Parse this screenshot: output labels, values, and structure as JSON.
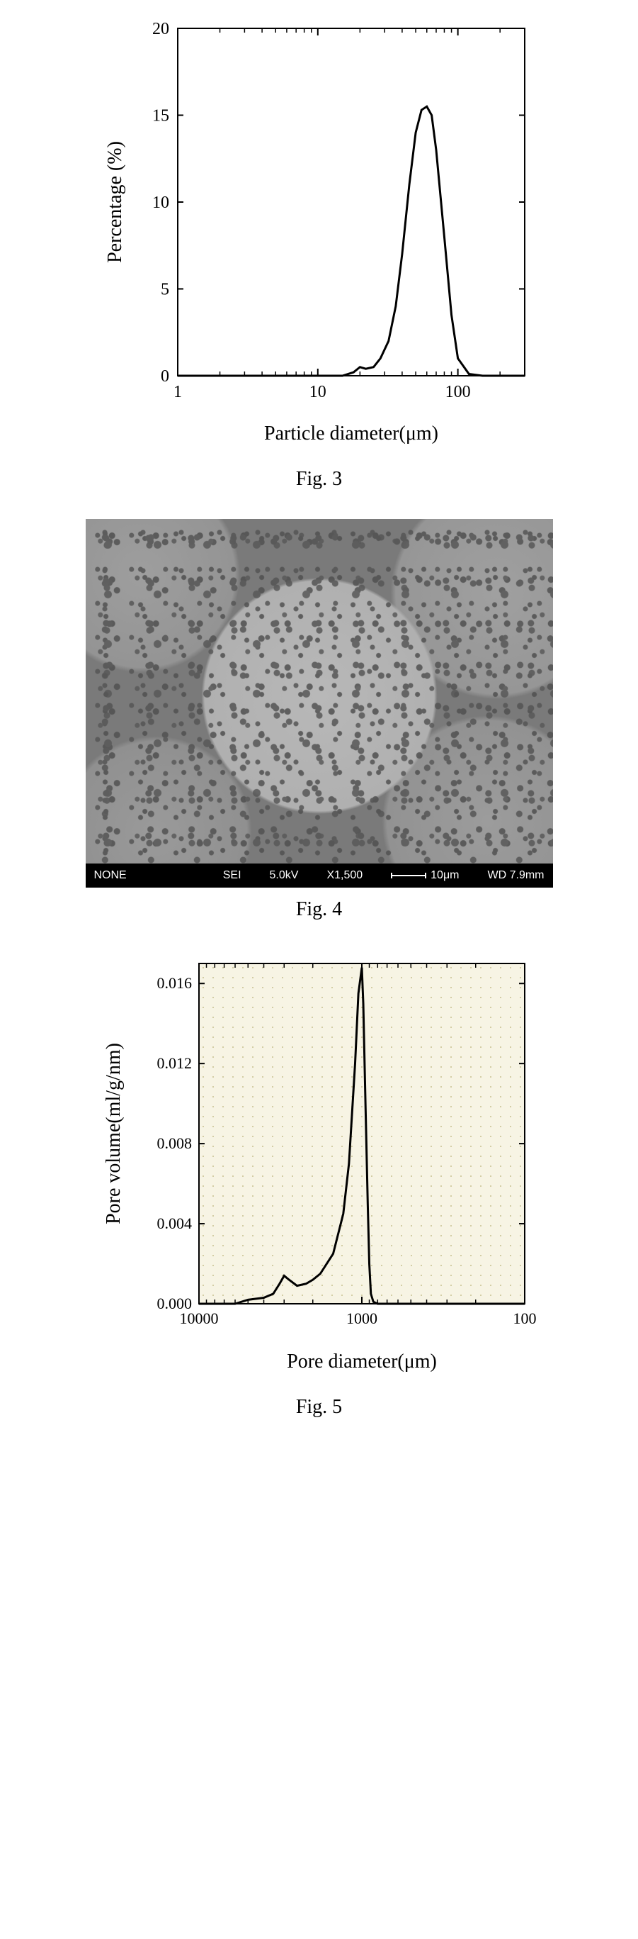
{
  "fig3": {
    "caption": "Fig. 3",
    "type": "line",
    "xlabel": "Particle diameter(μm)",
    "ylabel": "Percentage (%)",
    "xscale": "log",
    "xlim": [
      1,
      300
    ],
    "ylim": [
      0,
      20
    ],
    "xticks_major": [
      1,
      10,
      100
    ],
    "xtick_labels": [
      "1",
      "10",
      "100"
    ],
    "yticks": [
      0,
      5,
      10,
      15,
      20
    ],
    "ytick_labels": [
      "0",
      "5",
      "10",
      "15",
      "20"
    ],
    "line_color": "#000000",
    "line_width": 3,
    "background_color": "#ffffff",
    "axis_color": "#000000",
    "label_fontsize": 28,
    "tick_fontsize": 24,
    "tick_inward": true,
    "data": {
      "x": [
        1,
        5,
        10,
        15,
        18,
        20,
        22,
        25,
        28,
        32,
        36,
        40,
        45,
        50,
        55,
        60,
        65,
        70,
        80,
        90,
        100,
        120,
        150,
        200,
        300
      ],
      "y": [
        0,
        0,
        0,
        0,
        0.2,
        0.5,
        0.4,
        0.5,
        1.0,
        2.0,
        4.0,
        7.0,
        11.0,
        14.0,
        15.3,
        15.5,
        15.0,
        13.0,
        8.0,
        3.5,
        1.0,
        0.1,
        0,
        0,
        0
      ]
    }
  },
  "fig4": {
    "caption": "Fig. 4",
    "type": "sem-micrograph",
    "bar": {
      "label_left": "NONE",
      "detector": "SEI",
      "voltage": "5.0kV",
      "magnification": "X1,500",
      "scale_text": "10μm",
      "wd": "WD 7.9mm"
    }
  },
  "fig5": {
    "caption": "Fig. 5",
    "type": "line",
    "xlabel": "Pore diameter(μm)",
    "ylabel": "Pore volume(ml/g/nm)",
    "xscale": "log",
    "x_reversed": true,
    "xlim": [
      10000,
      100
    ],
    "ylim": [
      0.0,
      0.017
    ],
    "xticks_major": [
      10000,
      1000,
      100
    ],
    "xtick_labels": [
      "10000",
      "1000",
      "100"
    ],
    "yticks": [
      0.0,
      0.004,
      0.008,
      0.012,
      0.016
    ],
    "ytick_labels": [
      "0.000",
      "0.004",
      "0.008",
      "0.012",
      "0.016"
    ],
    "line_color": "#000000",
    "line_width": 3,
    "background_color": "#f7f4e4",
    "dot_grid": true,
    "dot_color": "#c8c090",
    "axis_color": "#000000",
    "label_fontsize": 28,
    "tick_fontsize": 22,
    "data": {
      "x": [
        10000,
        6000,
        5000,
        4000,
        3500,
        3200,
        3000,
        2800,
        2500,
        2200,
        2000,
        1800,
        1500,
        1300,
        1200,
        1100,
        1050,
        1000,
        980,
        950,
        920,
        900,
        880,
        850,
        800,
        700,
        600,
        500,
        400,
        300,
        200,
        100
      ],
      "y": [
        0.0,
        0.0,
        0.0002,
        0.0003,
        0.0005,
        0.001,
        0.0014,
        0.0012,
        0.0009,
        0.001,
        0.0012,
        0.0015,
        0.0025,
        0.0045,
        0.007,
        0.012,
        0.0155,
        0.0168,
        0.015,
        0.01,
        0.005,
        0.002,
        0.0005,
        0.0001,
        0.0,
        0.0,
        0.0,
        0.0,
        0.0,
        0.0,
        0.0,
        0.0
      ]
    }
  }
}
